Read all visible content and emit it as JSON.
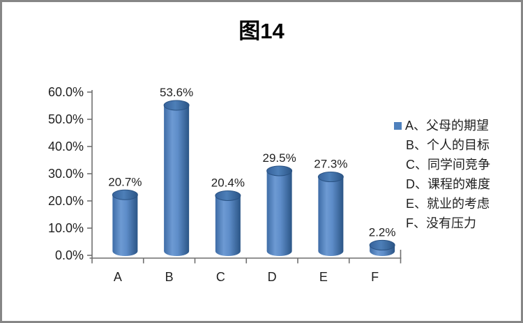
{
  "chart_data": {
    "type": "bar",
    "subtype": "cylinder-3d",
    "title": "图14",
    "categories": [
      "A",
      "B",
      "C",
      "D",
      "E",
      "F"
    ],
    "values": [
      20.7,
      53.6,
      20.4,
      29.5,
      27.3,
      2.2
    ],
    "data_labels": [
      "20.7%",
      "53.6%",
      "20.4%",
      "29.5%",
      "27.3%",
      "2.2%"
    ],
    "xlabel": "",
    "ylabel": "",
    "ylim": [
      0,
      60
    ],
    "ytick_step": 10,
    "ytick_labels": [
      "0.0%",
      "10.0%",
      "20.0%",
      "30.0%",
      "40.0%",
      "50.0%",
      "60.0%"
    ],
    "grid": false,
    "legend_position": "right",
    "legend_entries": [
      "A、父母的期望",
      "B、个人的目标",
      "C、同学间竞争",
      "D、课程的难度",
      "E、就业的考虑",
      "F、没有压力"
    ],
    "bar_color": "#4F81BD",
    "axis_color": "#6f6f6f",
    "text_color": "#1f1f1f"
  }
}
